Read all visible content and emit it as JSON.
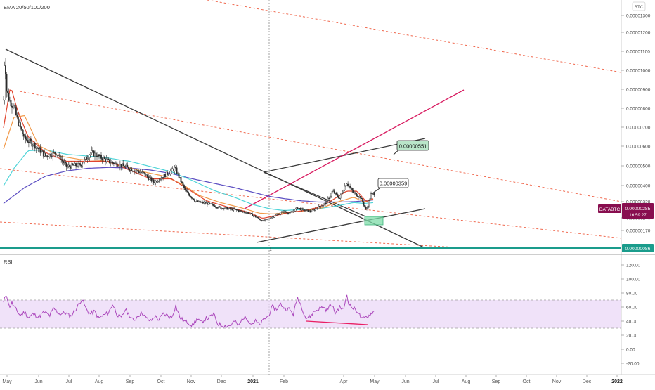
{
  "colors": {
    "background": "#ffffff",
    "candle": "#2b2b2b",
    "ema20": "#e0452f",
    "ema50": "#f29a4a",
    "ema100": "#4fd4d8",
    "ema200": "#5c4ec2",
    "channel": "#f0694f",
    "trend": "#3a3a3a",
    "magenta": "#d81b60",
    "support": "#1a9c8c",
    "rsi": "#ab47bc",
    "rsi_band": "#ead6f7",
    "divergence": "#e91e63",
    "price_tag": "#880e4f"
  },
  "chart_data": [
    {
      "type": "candlestick",
      "title": "EMA 20/50/100/200",
      "currency": "BTC",
      "x_labels": [
        "May",
        "Jun",
        "Jul",
        "Aug",
        "Sep",
        "Oct",
        "Nov",
        "Dec",
        "2021",
        "Feb",
        "Apr",
        "May",
        "Jun",
        "Jul",
        "Aug",
        "Sep",
        "Oct",
        "Nov",
        "Dec",
        "2022"
      ],
      "y_ticks": [
        "0.00001300",
        "0.00001200",
        "0.00001100",
        "0.00001000",
        "0.00000900",
        "0.00000800",
        "0.00000700",
        "0.00000600",
        "0.00000500",
        "0.00000400",
        "0.00000320",
        "0.00000240",
        "0.00000170",
        "0.00000086"
      ],
      "price_series": {
        "anchors": [
          [
            0,
            820
          ],
          [
            2,
            1100
          ],
          [
            4,
            880
          ],
          [
            8,
            820
          ],
          [
            15,
            780
          ],
          [
            20,
            700
          ],
          [
            30,
            600
          ],
          [
            45,
            560
          ],
          [
            60,
            500
          ],
          [
            75,
            520
          ],
          [
            90,
            440
          ],
          [
            110,
            450
          ],
          [
            125,
            520
          ],
          [
            135,
            500
          ],
          [
            150,
            470
          ],
          [
            165,
            450
          ],
          [
            180,
            430
          ],
          [
            200,
            400
          ],
          [
            215,
            350
          ],
          [
            230,
            390
          ],
          [
            245,
            430
          ],
          [
            260,
            300
          ],
          [
            275,
            240
          ],
          [
            290,
            230
          ],
          [
            310,
            205
          ],
          [
            330,
            195
          ],
          [
            350,
            175
          ],
          [
            360,
            155
          ],
          [
            370,
            130
          ],
          [
            378,
            142
          ],
          [
            390,
            165
          ],
          [
            400,
            185
          ],
          [
            410,
            175
          ],
          [
            420,
            205
          ],
          [
            430,
            190
          ],
          [
            440,
            185
          ],
          [
            450,
            210
          ],
          [
            460,
            230
          ],
          [
            470,
            300
          ],
          [
            480,
            260
          ],
          [
            490,
            350
          ],
          [
            500,
            290
          ],
          [
            510,
            265
          ],
          [
            518,
            190
          ],
          [
            525,
            280
          ],
          [
            530,
            285
          ]
        ],
        "ema20": [
          [
            0,
            660
          ],
          [
            10,
            900
          ],
          [
            20,
            760
          ],
          [
            35,
            610
          ],
          [
            60,
            520
          ],
          [
            90,
            470
          ],
          [
            120,
            470
          ],
          [
            150,
            470
          ],
          [
            180,
            420
          ],
          [
            210,
            370
          ],
          [
            240,
            370
          ],
          [
            260,
            320
          ],
          [
            290,
            245
          ],
          [
            320,
            210
          ],
          [
            350,
            180
          ],
          [
            370,
            145
          ],
          [
            390,
            162
          ],
          [
            410,
            180
          ],
          [
            430,
            190
          ],
          [
            450,
            208
          ],
          [
            470,
            250
          ],
          [
            490,
            300
          ],
          [
            505,
            300
          ],
          [
            518,
            240
          ],
          [
            530,
            260
          ]
        ],
        "ema50": [
          [
            0,
            540
          ],
          [
            15,
            720
          ],
          [
            30,
            730
          ],
          [
            50,
            560
          ],
          [
            80,
            500
          ],
          [
            110,
            480
          ],
          [
            140,
            475
          ],
          [
            170,
            445
          ],
          [
            200,
            410
          ],
          [
            230,
            385
          ],
          [
            255,
            340
          ],
          [
            280,
            275
          ],
          [
            310,
            235
          ],
          [
            340,
            205
          ],
          [
            365,
            175
          ],
          [
            385,
            170
          ],
          [
            405,
            178
          ],
          [
            430,
            188
          ],
          [
            455,
            205
          ],
          [
            480,
            242
          ],
          [
            500,
            265
          ],
          [
            515,
            240
          ],
          [
            530,
            255
          ]
        ],
        "ema100": [
          [
            0,
            330
          ],
          [
            15,
            430
          ],
          [
            35,
            530
          ],
          [
            60,
            535
          ],
          [
            90,
            510
          ],
          [
            120,
            500
          ],
          [
            150,
            488
          ],
          [
            180,
            470
          ],
          [
            210,
            440
          ],
          [
            240,
            410
          ],
          [
            270,
            360
          ],
          [
            300,
            305
          ],
          [
            330,
            265
          ],
          [
            355,
            225
          ],
          [
            380,
            200
          ],
          [
            400,
            190
          ],
          [
            425,
            195
          ],
          [
            450,
            200
          ],
          [
            475,
            215
          ],
          [
            500,
            235
          ],
          [
            515,
            230
          ],
          [
            530,
            235
          ]
        ],
        "ema200": [
          [
            0,
            230
          ],
          [
            30,
            320
          ],
          [
            60,
            385
          ],
          [
            90,
            415
          ],
          [
            120,
            430
          ],
          [
            150,
            435
          ],
          [
            180,
            432
          ],
          [
            210,
            420
          ],
          [
            240,
            400
          ],
          [
            270,
            370
          ],
          [
            300,
            345
          ],
          [
            330,
            320
          ],
          [
            355,
            295
          ],
          [
            380,
            270
          ],
          [
            400,
            258
          ],
          [
            425,
            245
          ],
          [
            450,
            238
          ],
          [
            475,
            238
          ],
          [
            500,
            240
          ],
          [
            515,
            245
          ],
          [
            530,
            250
          ]
        ]
      },
      "annotations": {
        "top_callout": "0.00000551",
        "mid_callout": "0.00000359",
        "pair_tag": "DATABTC",
        "price_tag": "0.00000285",
        "countdown": "16:59:27",
        "support_tag": "0.00000086",
        "marker": "1"
      }
    },
    {
      "type": "line",
      "title": "RSI",
      "y_ticks": [
        "120.00",
        "100.00",
        "80.00",
        "60.00",
        "40.00",
        "20.00",
        "0.00",
        "-20.00"
      ],
      "ylim": [
        -25,
        125
      ],
      "band": [
        30,
        70
      ],
      "rsi_series": [
        [
          0,
          66
        ],
        [
          4,
          80
        ],
        [
          8,
          60
        ],
        [
          12,
          66
        ],
        [
          18,
          56
        ],
        [
          24,
          48
        ],
        [
          30,
          53
        ],
        [
          36,
          45
        ],
        [
          42,
          50
        ],
        [
          50,
          46
        ],
        [
          58,
          53
        ],
        [
          66,
          48
        ],
        [
          72,
          58
        ],
        [
          80,
          50
        ],
        [
          88,
          52
        ],
        [
          96,
          47
        ],
        [
          104,
          58
        ],
        [
          112,
          72
        ],
        [
          118,
          57
        ],
        [
          124,
          50
        ],
        [
          130,
          54
        ],
        [
          136,
          44
        ],
        [
          142,
          48
        ],
        [
          150,
          52
        ],
        [
          156,
          64
        ],
        [
          162,
          50
        ],
        [
          168,
          44
        ],
        [
          174,
          57
        ],
        [
          180,
          48
        ],
        [
          186,
          40
        ],
        [
          192,
          48
        ],
        [
          198,
          52
        ],
        [
          204,
          44
        ],
        [
          210,
          40
        ],
        [
          216,
          47
        ],
        [
          222,
          42
        ],
        [
          228,
          50
        ],
        [
          234,
          48
        ],
        [
          240,
          45
        ],
        [
          246,
          62
        ],
        [
          252,
          45
        ],
        [
          258,
          40
        ],
        [
          264,
          38
        ],
        [
          270,
          34
        ],
        [
          276,
          43
        ],
        [
          282,
          38
        ],
        [
          288,
          43
        ],
        [
          294,
          45
        ],
        [
          300,
          50
        ],
        [
          306,
          36
        ],
        [
          312,
          34
        ],
        [
          318,
          33
        ],
        [
          324,
          34
        ],
        [
          330,
          40
        ],
        [
          336,
          33
        ],
        [
          342,
          45
        ],
        [
          348,
          44
        ],
        [
          354,
          36
        ],
        [
          360,
          40
        ],
        [
          366,
          34
        ],
        [
          372,
          43
        ],
        [
          378,
          47
        ],
        [
          384,
          60
        ],
        [
          390,
          57
        ],
        [
          396,
          64
        ],
        [
          402,
          58
        ],
        [
          408,
          57
        ],
        [
          414,
          50
        ],
        [
          420,
          74
        ],
        [
          426,
          60
        ],
        [
          432,
          44
        ],
        [
          438,
          47
        ],
        [
          444,
          54
        ],
        [
          450,
          57
        ],
        [
          456,
          60
        ],
        [
          462,
          56
        ],
        [
          468,
          64
        ],
        [
          474,
          52
        ],
        [
          480,
          60
        ],
        [
          486,
          56
        ],
        [
          490,
          79
        ],
        [
          494,
          63
        ],
        [
          500,
          58
        ],
        [
          506,
          54
        ],
        [
          512,
          42
        ],
        [
          518,
          46
        ],
        [
          522,
          48
        ],
        [
          526,
          52
        ],
        [
          530,
          54
        ]
      ]
    }
  ]
}
